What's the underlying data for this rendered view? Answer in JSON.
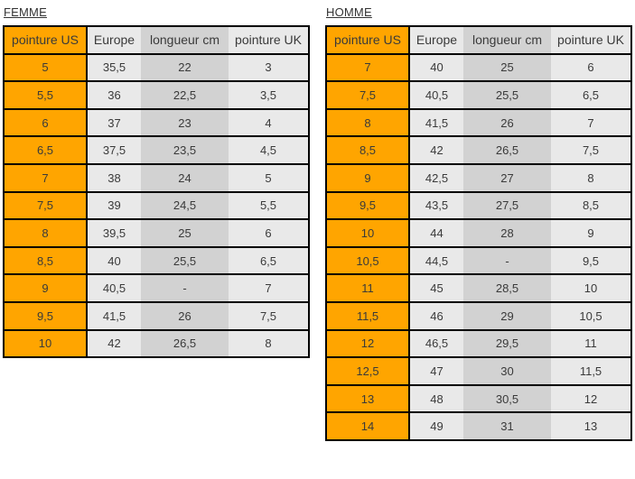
{
  "colors": {
    "orange": "#FFA500",
    "light_gray": "#E9E9E9",
    "mid_gray": "#D2D2D2",
    "header_red": "#CC3000",
    "orange_cell_text": "#993300",
    "cell_text": "#3A3A3A",
    "title_text": "#333333",
    "border": "#000000"
  },
  "tables": [
    {
      "id": "femme",
      "title": "FEMME",
      "headers": [
        "pointure US",
        "Europe",
        "longueur cm",
        "pointure UK"
      ],
      "rows": [
        [
          "5",
          "35,5",
          "22",
          "3"
        ],
        [
          "5,5",
          "36",
          "22,5",
          "3,5"
        ],
        [
          "6",
          "37",
          "23",
          "4"
        ],
        [
          "6,5",
          "37,5",
          "23,5",
          "4,5"
        ],
        [
          "7",
          "38",
          "24",
          "5"
        ],
        [
          "7,5",
          "39",
          "24,5",
          "5,5"
        ],
        [
          "8",
          "39,5",
          "25",
          "6"
        ],
        [
          "8,5",
          "40",
          "25,5",
          "6,5"
        ],
        [
          "9",
          "40,5",
          "-",
          "7"
        ],
        [
          "9,5",
          "41,5",
          "26",
          "7,5"
        ],
        [
          "10",
          "42",
          "26,5",
          "8"
        ]
      ]
    },
    {
      "id": "homme",
      "title": "HOMME",
      "headers": [
        "pointure US",
        "Europe",
        "longueur cm",
        "pointure UK"
      ],
      "rows": [
        [
          "7",
          "40",
          "25",
          "6"
        ],
        [
          "7,5",
          "40,5",
          "25,5",
          "6,5"
        ],
        [
          "8",
          "41,5",
          "26",
          "7"
        ],
        [
          "8,5",
          "42",
          "26,5",
          "7,5"
        ],
        [
          "9",
          "42,5",
          "27",
          "8"
        ],
        [
          "9,5",
          "43,5",
          "27,5",
          "8,5"
        ],
        [
          "10",
          "44",
          "28",
          "9"
        ],
        [
          "10,5",
          "44,5",
          "-",
          "9,5"
        ],
        [
          "11",
          "45",
          "28,5",
          "10"
        ],
        [
          "11,5",
          "46",
          "29",
          "10,5"
        ],
        [
          "12",
          "46,5",
          "29,5",
          "11"
        ],
        [
          "12,5",
          "47",
          "30",
          "11,5"
        ],
        [
          "13",
          "48",
          "30,5",
          "12"
        ],
        [
          "14",
          "49",
          "31",
          "13"
        ]
      ]
    }
  ]
}
